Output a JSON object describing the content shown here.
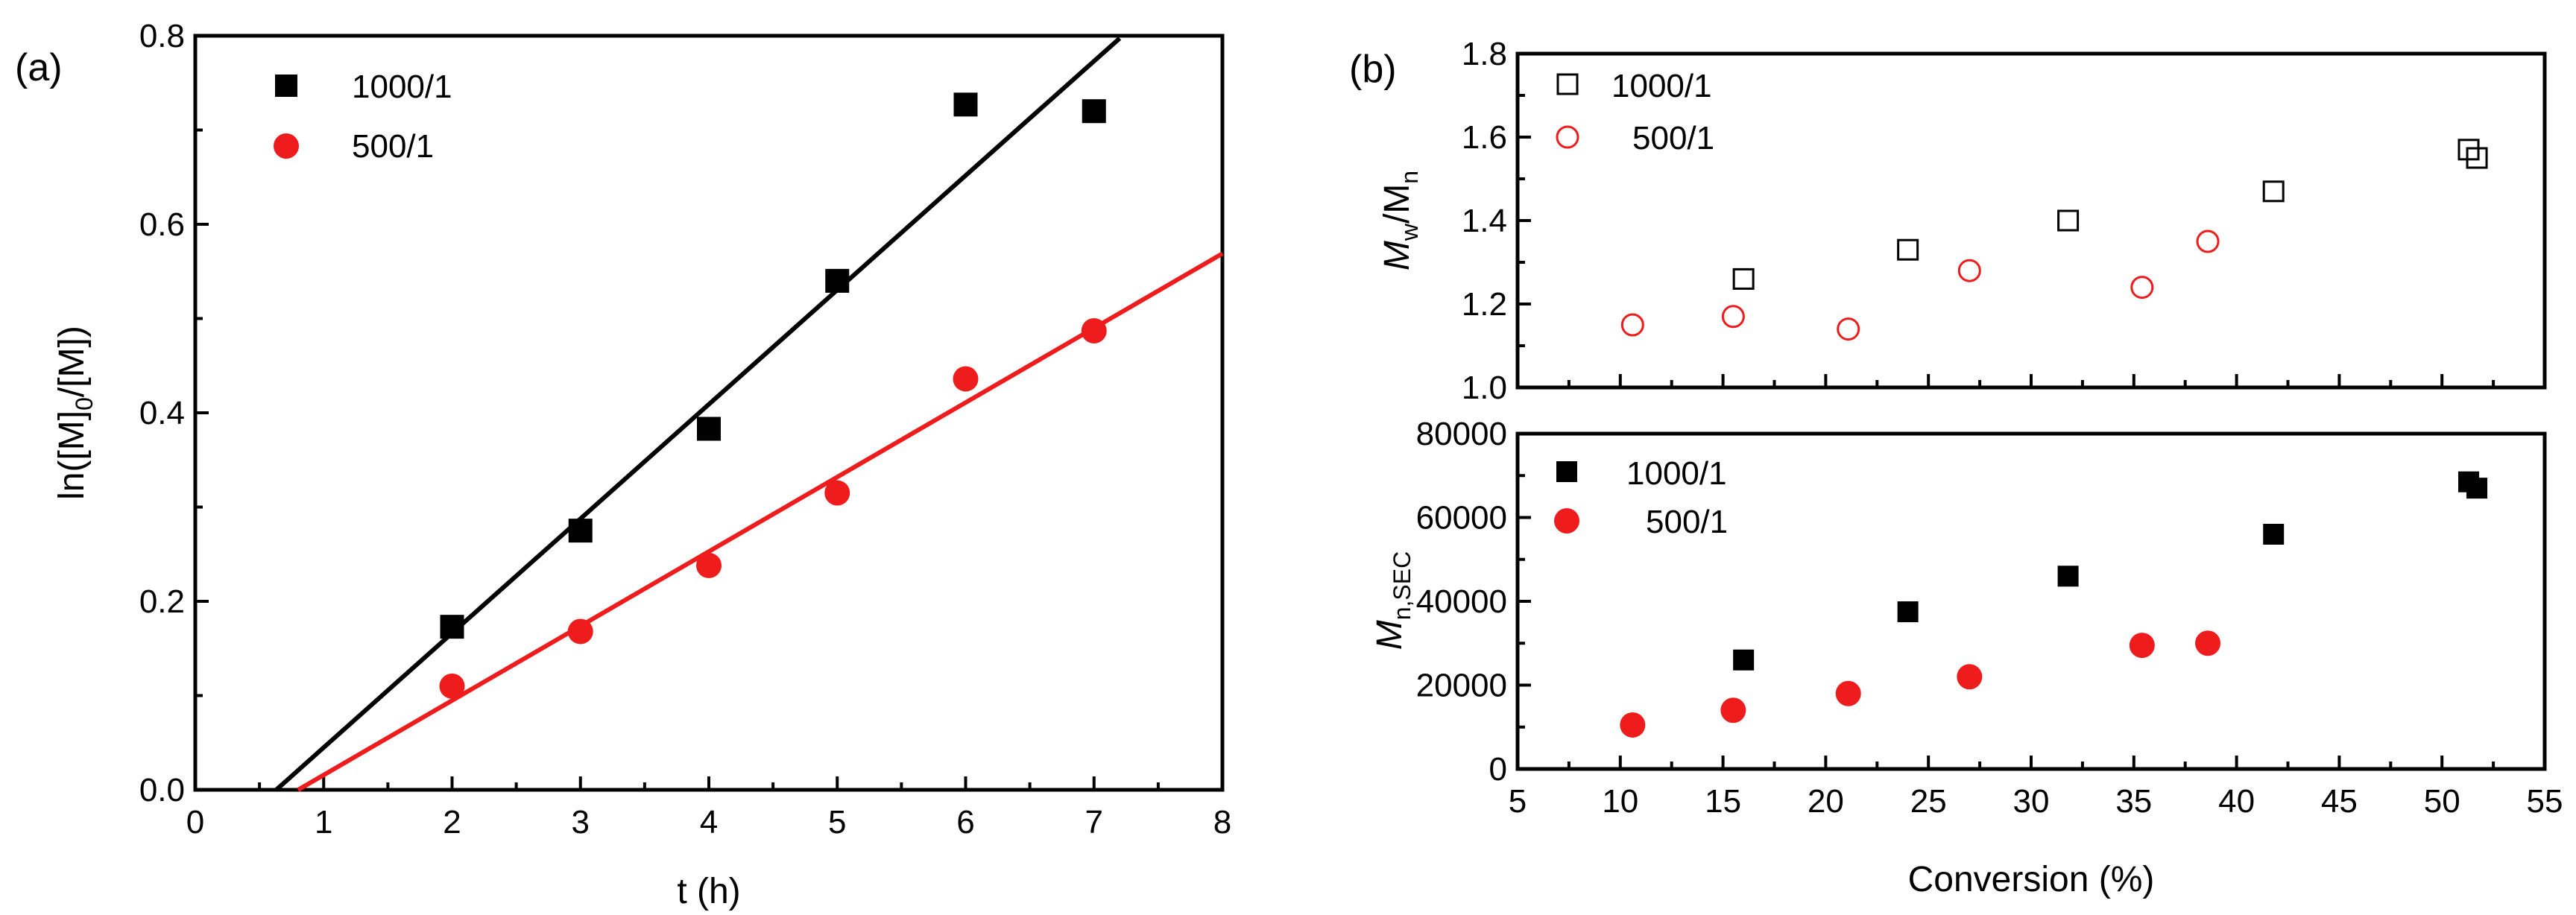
{
  "chart_data": [
    {
      "type": "scatter",
      "panel_label": "(a)",
      "xlabel": "t (h)",
      "ylabel": "ln([M]0/[M])",
      "ylabel_parts": {
        "a": "ln([M]",
        "sub": "0",
        "b": "/[M])"
      },
      "xlim": [
        0,
        8
      ],
      "ylim": [
        0,
        0.8
      ],
      "xticks": [
        "0",
        "1",
        "2",
        "3",
        "4",
        "5",
        "6",
        "7",
        "8"
      ],
      "yticks": [
        "0.0",
        "0.2",
        "0.4",
        "0.6",
        "0.8"
      ],
      "legend_position": "top-left",
      "series": [
        {
          "name": "1000/1",
          "marker": "square-filled",
          "color": "#000000",
          "x": [
            2,
            3,
            4,
            5,
            6,
            7
          ],
          "y": [
            0.173,
            0.275,
            0.383,
            0.54,
            0.727,
            0.72
          ],
          "fit": {
            "x1": 0.65,
            "x2": 7.2
          }
        },
        {
          "name": "500/1",
          "marker": "circle-filled",
          "color": "#ee1c1c",
          "x": [
            2,
            3,
            4,
            5,
            6,
            7
          ],
          "y": [
            0.11,
            0.168,
            0.238,
            0.315,
            0.436,
            0.487
          ],
          "fit": {
            "x1": 0.8,
            "x2": 8
          }
        }
      ]
    },
    {
      "type": "scatter",
      "panel_label": "(b)",
      "xlabel": "Conversion (%)",
      "ylabel": "Mw/Mn",
      "ylabel_parts": {
        "a": "M",
        "sub1": "w",
        "b": "/M",
        "sub2": "n"
      },
      "xlim": [
        5,
        55
      ],
      "ylim": [
        1.0,
        1.8
      ],
      "yticks": [
        "1.0",
        "1.2",
        "1.4",
        "1.6",
        "1.8"
      ],
      "legend_position": "top-left",
      "series": [
        {
          "name": "1000/1",
          "marker": "square-open",
          "color": "#000000",
          "x": [
            16,
            24,
            31.8,
            41.8,
            51.3,
            51.7
          ],
          "y": [
            1.26,
            1.33,
            1.4,
            1.47,
            1.57,
            1.55
          ]
        },
        {
          "name": "500/1",
          "marker": "circle-open",
          "color": "#ee1c1c",
          "x": [
            10.6,
            15.5,
            21.1,
            27,
            35.4,
            38.6
          ],
          "y": [
            1.15,
            1.17,
            1.14,
            1.28,
            1.24,
            1.35
          ]
        }
      ]
    },
    {
      "type": "scatter",
      "xlabel": "Conversion (%)",
      "ylabel": "Mn,SEC",
      "ylabel_parts": {
        "a": "M",
        "sub": "n,SEC"
      },
      "xlim": [
        5,
        55
      ],
      "ylim": [
        0,
        80000
      ],
      "xticks": [
        "5",
        "10",
        "15",
        "20",
        "25",
        "30",
        "35",
        "40",
        "45",
        "50",
        "55"
      ],
      "yticks": [
        "0",
        "20000",
        "40000",
        "60000",
        "80000"
      ],
      "legend_position": "top-left",
      "series": [
        {
          "name": "1000/1",
          "marker": "square-filled",
          "color": "#000000",
          "x": [
            16,
            24,
            31.8,
            41.8,
            51.3,
            51.7
          ],
          "y": [
            26000,
            37500,
            46000,
            56000,
            68500,
            67000
          ]
        },
        {
          "name": "500/1",
          "marker": "circle-filled",
          "color": "#ee1c1c",
          "x": [
            10.6,
            15.5,
            21.1,
            27,
            35.4,
            38.6
          ],
          "y": [
            10500,
            14000,
            18000,
            22000,
            29500,
            30000
          ]
        }
      ]
    }
  ]
}
